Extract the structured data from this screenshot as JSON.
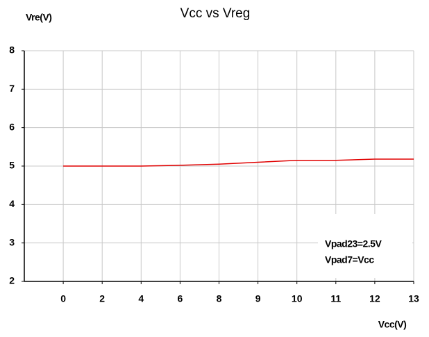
{
  "chart_data": {
    "type": "line",
    "title": "Vcc vs Vreg",
    "x_label": "Vcc(V)",
    "y_label": "Vre(V)",
    "categories": [
      "0",
      "2",
      "4",
      "6",
      "8",
      "9",
      "10",
      "11",
      "12",
      "13"
    ],
    "series": [
      {
        "name": "Vreg",
        "color": "#e00000",
        "values": [
          5.0,
          5.0,
          5.0,
          5.02,
          5.05,
          5.1,
          5.15,
          5.15,
          5.18,
          5.18
        ]
      }
    ],
    "ylim": [
      2,
      8
    ],
    "yticks": [
      2,
      3,
      4,
      5,
      6,
      7,
      8
    ],
    "grid": true,
    "annotations": [
      "Vpad23=2.5V",
      "Vpad7=Vcc"
    ]
  }
}
